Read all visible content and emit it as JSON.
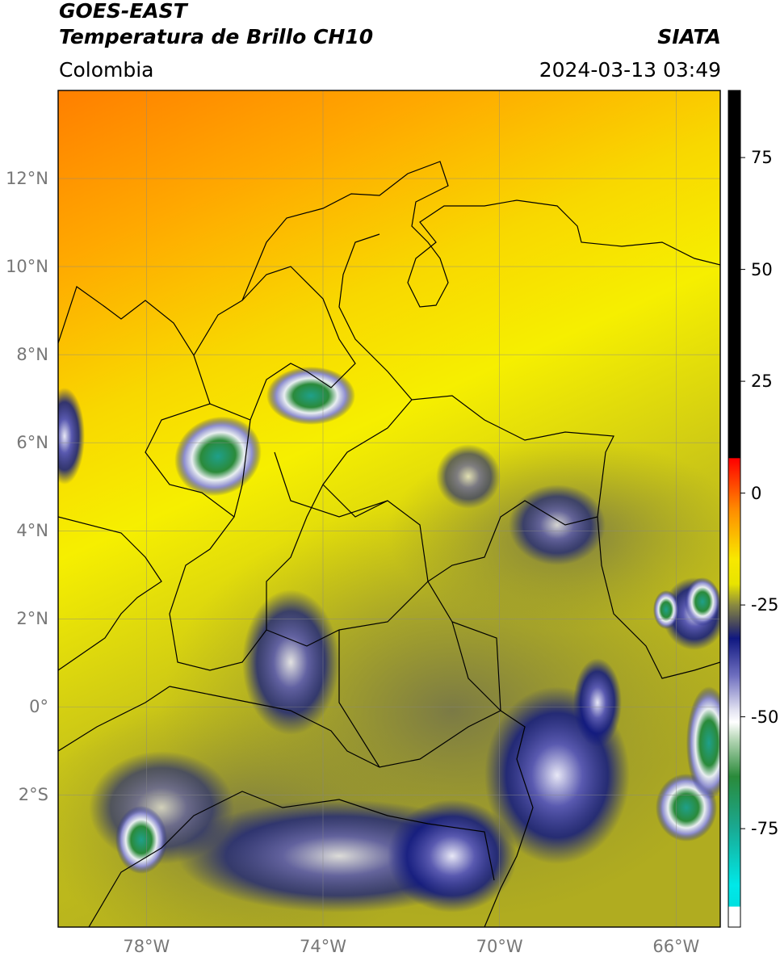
{
  "header": {
    "title_line1": "GOES-EAST",
    "title_line2": "Temperatura de Brillo CH10",
    "agency": "SIATA",
    "region": "Colombia",
    "timestamp": "2024-03-13 03:49"
  },
  "map": {
    "lat_labels": [
      {
        "text": "12°N",
        "lat": 12
      },
      {
        "text": "10°N",
        "lat": 10
      },
      {
        "text": "8°N",
        "lat": 8
      },
      {
        "text": "6°N",
        "lat": 6
      },
      {
        "text": "4°N",
        "lat": 4
      },
      {
        "text": "2°N",
        "lat": 2
      },
      {
        "text": "0°",
        "lat": 0
      },
      {
        "text": "2°S",
        "lat": -2
      }
    ],
    "lon_labels": [
      {
        "text": "78°W",
        "lon": -78
      },
      {
        "text": "74°W",
        "lon": -74
      },
      {
        "text": "70°W",
        "lon": -70
      },
      {
        "text": "66°W",
        "lon": -66
      }
    ],
    "extent": {
      "lon_min": -80,
      "lon_max": -65,
      "lat_min": -5,
      "lat_max": 14
    }
  },
  "colorbar": {
    "labels": [
      "75",
      "50",
      "25",
      "0",
      "-25",
      "-50",
      "-75"
    ],
    "values": [
      75,
      50,
      25,
      0,
      -25,
      -50,
      -75
    ],
    "range": [
      -97,
      90
    ],
    "colors": {
      "black": "#000000",
      "red": "#ff2000",
      "orange": "#ff9a00",
      "yellow": "#f6f000",
      "olive": "#8c8c30",
      "navy": "#101880",
      "lavender": "#c8c8e8",
      "green": "#2a8a3a",
      "cyan": "#00e0e0"
    }
  }
}
